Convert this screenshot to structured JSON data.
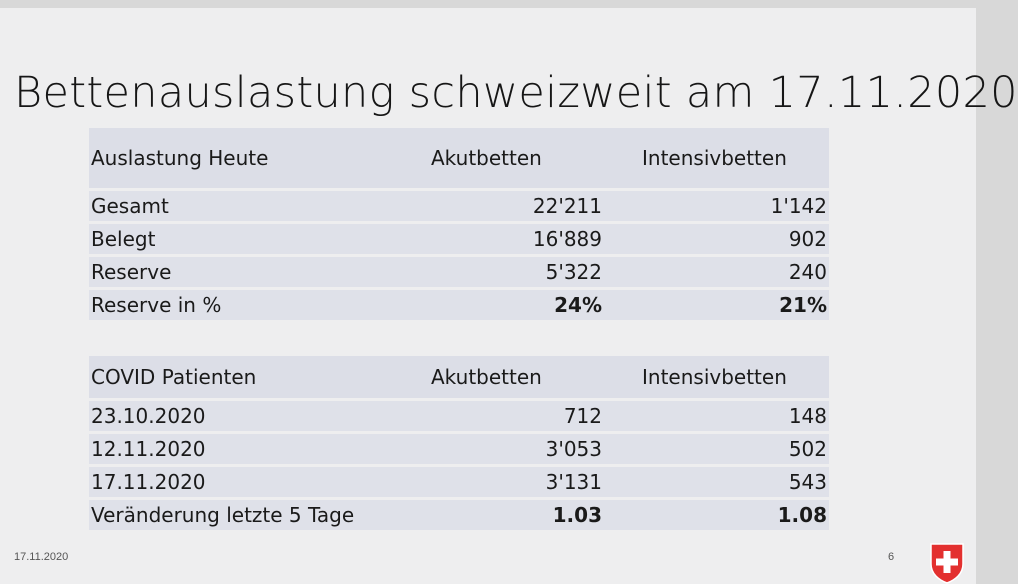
{
  "title": "Bettenauslastung schweizweit am 17.11.2020",
  "table_today": {
    "headers": [
      "Auslastung Heute",
      "Akutbetten",
      "Intensivbetten"
    ],
    "rows": [
      {
        "label": "Gesamt",
        "acute": "22'211",
        "icu": "1'142"
      },
      {
        "label": "Belegt",
        "acute": "16'889",
        "icu": "902"
      },
      {
        "label": "Reserve",
        "acute": "5'322",
        "icu": "240"
      },
      {
        "label": "Reserve in %",
        "acute": "24%",
        "icu": "21%"
      }
    ]
  },
  "table_covid": {
    "headers": [
      "COVID Patienten",
      "Akutbetten",
      "Intensivbetten"
    ],
    "rows": [
      {
        "label": "23.10.2020",
        "acute": "712",
        "icu": "148"
      },
      {
        "label": "12.11.2020",
        "acute": "3'053",
        "icu": "502"
      },
      {
        "label": "17.11.2020",
        "acute": "3'131",
        "icu": "543"
      },
      {
        "label": "Veränderung letzte 5 Tage",
        "acute": "1.03",
        "icu": "1.08"
      }
    ]
  },
  "footer": {
    "date": "17.11.2020",
    "page": "6"
  },
  "colors": {
    "table_fill": "#dfe1e9",
    "logo_red": "#e3302f"
  }
}
